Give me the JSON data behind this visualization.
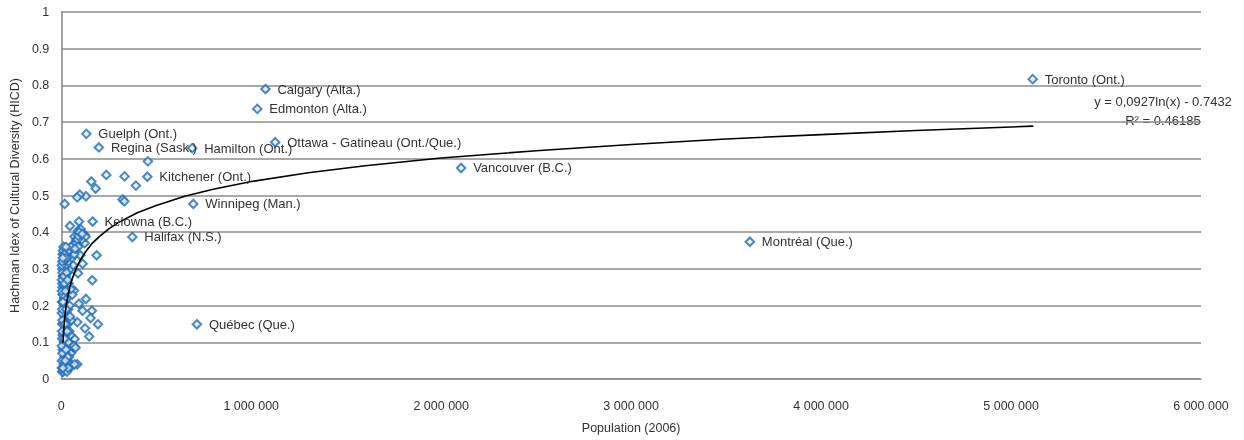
{
  "chart_data": {
    "type": "scatter",
    "xlabel": "Population (2006)",
    "ylabel": "Hachman Idex of Cultural Diversity (HICD)",
    "xlim": [
      0,
      6000000
    ],
    "xticks": [
      0,
      {
        "value": 1000000,
        "label": "1 000 000"
      },
      {
        "value": 2000000,
        "label": "2 000 000"
      },
      {
        "value": 3000000,
        "label": "3 000 000"
      },
      {
        "value": 4000000,
        "label": "4 000 000"
      },
      {
        "value": 5000000,
        "label": "5 000 000"
      },
      {
        "value": 6000000,
        "label": "6 000 000"
      }
    ],
    "ylim": [
      0,
      1
    ],
    "yticks": [
      0,
      0.1,
      0.2,
      0.3,
      0.4,
      0.5,
      0.6,
      0.7,
      0.8,
      0.9,
      1
    ],
    "grid": "y",
    "marker": "diamond",
    "series": [
      {
        "color": "#1f6db5",
        "x": [
          5114000,
          3625000,
          2105000,
          1126000,
          1075000,
          1032000,
          689000,
          714000,
          695000,
          453000,
          374000,
          165000,
          198000,
          132000,
          456000,
          237000,
          333000,
          393000,
          158000,
          181000,
          323000,
          332000,
          130000,
          97000,
          84000,
          18000,
          46000,
          93000,
          186000,
          163000,
          130000,
          93000,
          112000,
          161000,
          154000,
          193000,
          84000,
          125000,
          147000,
          112000,
          88000,
          123000,
          100000,
          67000,
          70000,
          84000,
          70000,
          88000,
          102000,
          123000,
          128000,
          70000,
          79000,
          62000,
          105000,
          5000,
          10000,
          20000,
          30000,
          12000,
          18000,
          35000,
          45000,
          55000,
          70000,
          22000,
          40000,
          50000,
          60000,
          8000,
          14000,
          28000,
          38000,
          48000,
          65000,
          75000,
          11000,
          24000,
          33000,
          42000,
          52000,
          9000,
          17000,
          27000,
          36000,
          46000,
          13000,
          21000,
          31000,
          44000,
          58000,
          10000,
          29000,
          39000,
          50000,
          12000,
          23000,
          34000,
          47000,
          62000,
          16000,
          26000,
          37000,
          55000,
          68000,
          11000,
          30000,
          42000,
          52000,
          78000,
          85000,
          90000,
          95000,
          110000,
          88000,
          72000,
          15000,
          7000,
          8000,
          5000,
          5000,
          6000,
          40000,
          32000,
          3000,
          4000,
          6000,
          3000,
          5000,
          4000,
          6000,
          3000,
          5000,
          4000,
          7000,
          3000,
          5000,
          4000,
          6000,
          3000,
          5000,
          7000,
          9000,
          12000,
          18000,
          25000,
          14000,
          17000,
          22000,
          9000,
          26000,
          20000,
          30000,
          17000,
          25000,
          33000,
          13000,
          21000,
          36000,
          9000,
          28000,
          23000,
          33000,
          8000
        ],
        "values": [
          0.817,
          0.374,
          0.575,
          0.645,
          0.79,
          0.736,
          0.629,
          0.149,
          0.477,
          0.551,
          0.387,
          0.429,
          0.631,
          0.668,
          0.593,
          0.556,
          0.552,
          0.527,
          0.538,
          0.519,
          0.489,
          0.484,
          0.498,
          0.502,
          0.495,
          0.477,
          0.417,
          0.429,
          0.337,
          0.269,
          0.218,
          0.205,
          0.186,
          0.186,
          0.166,
          0.149,
          0.155,
          0.138,
          0.116,
          0.314,
          0.288,
          0.37,
          0.337,
          0.241,
          0.109,
          0.04,
          0.088,
          0.404,
          0.408,
          0.393,
          0.388,
          0.388,
          0.379,
          0.366,
          0.379,
          0.02,
          0.02,
          0.025,
          0.02,
          0.05,
          0.06,
          0.05,
          0.04,
          0.035,
          0.04,
          0.07,
          0.08,
          0.07,
          0.09,
          0.08,
          0.1,
          0.11,
          0.1,
          0.12,
          0.09,
          0.085,
          0.13,
          0.14,
          0.15,
          0.13,
          0.16,
          0.15,
          0.17,
          0.18,
          0.19,
          0.17,
          0.2,
          0.21,
          0.22,
          0.2,
          0.23,
          0.23,
          0.25,
          0.26,
          0.245,
          0.27,
          0.28,
          0.29,
          0.3,
          0.31,
          0.3,
          0.31,
          0.32,
          0.33,
          0.34,
          0.32,
          0.345,
          0.35,
          0.36,
          0.37,
          0.38,
          0.39,
          0.4,
          0.395,
          0.36,
          0.355,
          0.22,
          0.12,
          0.28,
          0.15,
          0.3,
          0.25,
          0.06,
          0.33,
          0.03,
          0.05,
          0.07,
          0.09,
          0.11,
          0.13,
          0.16,
          0.18,
          0.19,
          0.21,
          0.23,
          0.24,
          0.26,
          0.27,
          0.29,
          0.31,
          0.32,
          0.34,
          0.35,
          0.36,
          0.34,
          0.36,
          0.28,
          0.26,
          0.24,
          0.21,
          0.19,
          0.15,
          0.13,
          0.11,
          0.08,
          0.06,
          0.04,
          0.05,
          0.03,
          0.03,
          0.29,
          0.33,
          0.27,
          0.33
        ]
      },
      {
        "type": "line",
        "color": "#000000",
        "marker": "none",
        "x": [
          9000,
          12000,
          15000,
          20000,
          25000,
          30000,
          40000,
          50000,
          60000,
          80000,
          100000,
          130000,
          160000,
          200000,
          250000,
          300000,
          400000,
          500000,
          650000,
          800000,
          1000000,
          1300000,
          1600000,
          2000000,
          2500000,
          3000000,
          3500000,
          4000000,
          4500000,
          5114000
        ],
        "values": [
          0.101,
          0.128,
          0.148,
          0.175,
          0.196,
          0.213,
          0.239,
          0.26,
          0.277,
          0.303,
          0.324,
          0.348,
          0.368,
          0.388,
          0.409,
          0.426,
          0.453,
          0.473,
          0.498,
          0.517,
          0.538,
          0.562,
          0.581,
          0.602,
          0.622,
          0.639,
          0.654,
          0.666,
          0.677,
          0.689
        ]
      }
    ],
    "annotations": [
      "y = 0,0927ln(x) - 0.7432",
      "R² = 0.46185",
      {
        "text": "Toronto (Ont.)",
        "x": 5114000,
        "y": 0.817
      },
      {
        "text": "Montréal (Que.)",
        "x": 3625000,
        "y": 0.374
      },
      {
        "text": "Vancouver (B.C.)",
        "x": 2105000,
        "y": 0.575
      },
      {
        "text": "Ottawa - Gatineau (Ont./Que.)",
        "x": 1126000,
        "y": 0.645
      },
      {
        "text": "Calgary (Alta.)",
        "x": 1075000,
        "y": 0.79
      },
      {
        "text": "Edmonton (Alta.)",
        "x": 1032000,
        "y": 0.736
      },
      {
        "text": "Hamilton (Ont.)",
        "x": 689000,
        "y": 0.629
      },
      {
        "text": "Québec (Que.)",
        "x": 714000,
        "y": 0.149
      },
      {
        "text": "Winnipeg (Man.)",
        "x": 695000,
        "y": 0.477
      },
      {
        "text": "Kitchener (Ont.)",
        "x": 453000,
        "y": 0.551
      },
      {
        "text": "Halifax (N.S.)",
        "x": 374000,
        "y": 0.387
      },
      {
        "text": "Kelowna (B.C.)",
        "x": 165000,
        "y": 0.429
      },
      {
        "text": "Regina (Sask.)",
        "x": 198000,
        "y": 0.631
      },
      {
        "text": "Guelph (Ont.)",
        "x": 132000,
        "y": 0.668
      }
    ]
  }
}
